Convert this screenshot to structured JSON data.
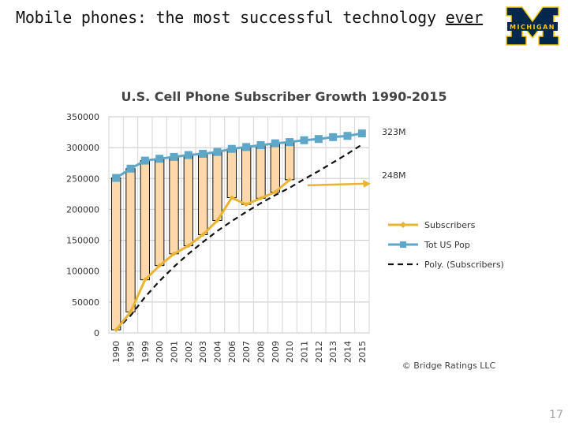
{
  "slide": {
    "title_main": "Mobile phones: the most successful technology ",
    "title_emph": "ever",
    "logo_text": "MICHIGAN",
    "logo_letter": "M",
    "page_number": "17"
  },
  "colors": {
    "subscribers": "#e8b431",
    "population": "#5fa7c8",
    "trend": "#111111",
    "bar_fill": "#fcd8ab",
    "logo_blue": "#00274c",
    "logo_maize": "#ffcb05"
  },
  "chart_data": {
    "type": "line",
    "title": "U.S. Cell Phone Subscriber Growth 1990-2015",
    "categories": [
      "1990",
      "1995",
      "1999",
      "2000",
      "2001",
      "2002",
      "2003",
      "2004",
      "2006",
      "2007",
      "2008",
      "2009",
      "2010",
      "2011",
      "2012",
      "2013",
      "2014",
      "2015"
    ],
    "series": [
      {
        "name": "Subscribers",
        "values": [
          5000,
          34000,
          86000,
          109000,
          128000,
          141000,
          159000,
          182000,
          219000,
          208000,
          218000,
          228000,
          248000,
          null,
          null,
          null,
          null,
          null
        ]
      },
      {
        "name": "Tot US Pop",
        "values": [
          251000,
          266000,
          279000,
          282000,
          285000,
          288000,
          290000,
          293000,
          298000,
          301000,
          304000,
          307000,
          309000,
          312000,
          314000,
          317000,
          319000,
          323000
        ]
      },
      {
        "name": "Poly. (Subscribers)",
        "values": [
          5000,
          28000,
          58000,
          84000,
          107000,
          128000,
          147000,
          165000,
          181000,
          196000,
          210000,
          223000,
          235000,
          249000,
          262000,
          276000,
          290000,
          305000
        ]
      }
    ],
    "ylim": [
      0,
      350000
    ],
    "yticks": [
      "0",
      "50000",
      "100000",
      "150000",
      "200000",
      "250000",
      "300000",
      "350000"
    ],
    "annotations": [
      {
        "text": "323M",
        "value": 323000
      },
      {
        "text": "248M",
        "value": 248000
      }
    ],
    "credit": "© Bridge Ratings LLC",
    "legend_position": "right"
  }
}
